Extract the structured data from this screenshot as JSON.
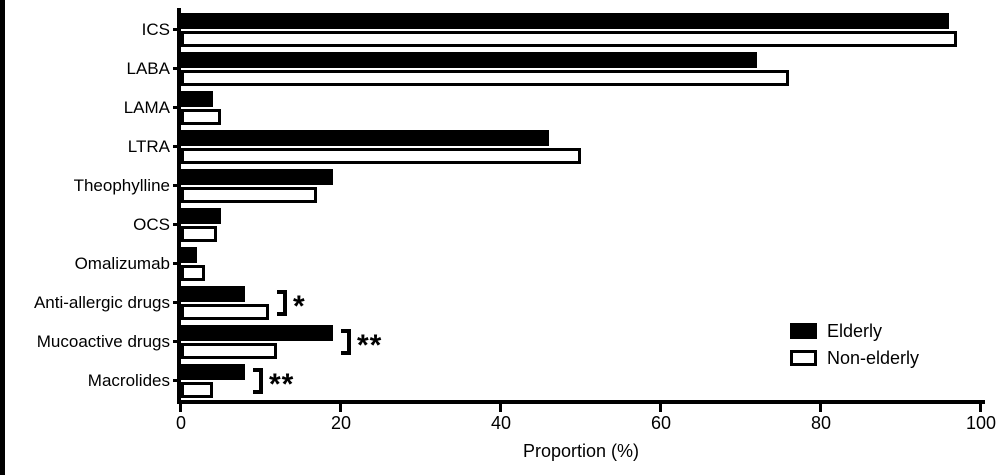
{
  "figure": {
    "background": "#ffffff",
    "bar_fill_elderly": "#000000",
    "bar_fill_nonelderly": "#ffffff",
    "outline_color": "#000000"
  },
  "chart_data": {
    "type": "bar",
    "orientation": "horizontal",
    "title": "",
    "xlabel": "Proportion (%)",
    "ylabel": "",
    "xlim": [
      0,
      100
    ],
    "xticks": [
      0,
      20,
      40,
      60,
      80,
      100
    ],
    "grid": false,
    "legend_position": "inside-right",
    "categories": [
      "ICS",
      "LABA",
      "LAMA",
      "LTRA",
      "Theophylline",
      "OCS",
      "Omalizumab",
      "Anti-allergic drugs",
      "Mucoactive drugs",
      "Macrolides"
    ],
    "series": [
      {
        "name": "Elderly",
        "fill": "#000000",
        "values": [
          96,
          72,
          4,
          46,
          19,
          5,
          2,
          8,
          19,
          8
        ]
      },
      {
        "name": "Non-elderly",
        "fill": "#ffffff",
        "values": [
          97,
          76,
          5,
          50,
          17,
          4.5,
          3,
          11,
          12,
          4
        ]
      }
    ],
    "significance": [
      "",
      "",
      "",
      "",
      "",
      "",
      "",
      "*",
      "**",
      "**"
    ]
  }
}
